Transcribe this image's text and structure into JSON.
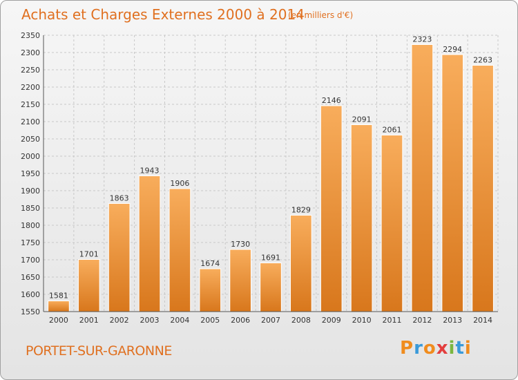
{
  "header": {
    "title": "Achats et Charges Externes 2000 à 2014",
    "unit": "(en milliers d'€)"
  },
  "footer": {
    "city": "PORTET-SUR-GARONNE",
    "logo": [
      "P",
      "r",
      "o",
      "x",
      "i",
      "t",
      "i"
    ],
    "logo_colors": [
      "#f08c1e",
      "#3a9ad9",
      "#f08c1e",
      "#e33e3e",
      "#7ab640",
      "#3a9ad9",
      "#f08c1e"
    ]
  },
  "colors": {
    "title": "#e07020",
    "bar_light": "#f7a955",
    "bar_dark": "#d97a1e",
    "grid": "#c8c8c8"
  },
  "chart_data": {
    "type": "bar",
    "title": "Achats et Charges Externes 2000 à 2014",
    "subtitle": "(en milliers d'€)",
    "xlabel": "",
    "ylabel": "",
    "categories": [
      "2000",
      "2001",
      "2002",
      "2003",
      "2004",
      "2005",
      "2006",
      "2007",
      "2008",
      "2009",
      "2010",
      "2011",
      "2012",
      "2013",
      "2014"
    ],
    "values": [
      1581,
      1701,
      1863,
      1943,
      1906,
      1674,
      1730,
      1691,
      1829,
      2146,
      2091,
      2061,
      2323,
      2294,
      2263
    ],
    "ylim": [
      1550,
      2350
    ],
    "yticks": [
      1550,
      1600,
      1650,
      1700,
      1750,
      1800,
      1850,
      1900,
      1950,
      2000,
      2050,
      2100,
      2150,
      2200,
      2250,
      2300,
      2350
    ],
    "grid": true,
    "data_labels": true
  }
}
